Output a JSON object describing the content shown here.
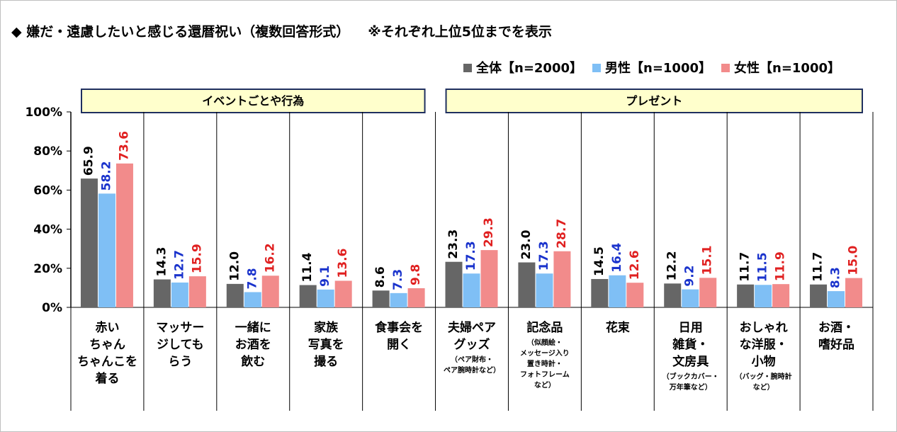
{
  "title": "◆ 嫌だ・遠慮したいと感じる還暦祝い（複数回答形式）",
  "note": "※それぞれ上位5位までを表示",
  "groups": [
    {
      "label": "イベントごとや行為"
    },
    {
      "label": "プレゼント"
    }
  ],
  "chart_data": {
    "type": "bar",
    "ylim": [
      0,
      100
    ],
    "yticks": [
      "0%",
      "20%",
      "40%",
      "60%",
      "80%",
      "100%"
    ],
    "grid": false,
    "legend_position": "top-right",
    "series": [
      {
        "name": "全体【n=2000】",
        "color": "#666666",
        "label_color": "#000000",
        "values": [
          65.9,
          14.3,
          12.0,
          11.4,
          8.6,
          23.3,
          23.0,
          14.5,
          12.2,
          11.7,
          11.7
        ],
        "labels": [
          "65.9",
          "14.3",
          "12.0",
          "11.4",
          "8.6",
          "23.3",
          "23.0",
          "14.5",
          "12.2",
          "11.7",
          "11.7"
        ]
      },
      {
        "name": "男性【n=1000】",
        "color": "#7fbff5",
        "label_color": "#1a33cc",
        "values": [
          58.2,
          12.7,
          7.8,
          9.1,
          7.3,
          17.3,
          17.3,
          16.4,
          9.2,
          11.5,
          8.3
        ],
        "labels": [
          "58.2",
          "12.7",
          "7.8",
          "9.1",
          "7.3",
          "17.3",
          "17.3",
          "16.4",
          "9.2",
          "11.5",
          "8.3"
        ]
      },
      {
        "name": "女性【n=1000】",
        "color": "#f28b8b",
        "label_color": "#e02020",
        "values": [
          73.6,
          15.9,
          16.2,
          13.6,
          9.8,
          29.3,
          28.7,
          12.6,
          15.1,
          11.9,
          15.0
        ],
        "labels": [
          "73.6",
          "15.9",
          "16.2",
          "13.6",
          "9.8",
          "29.3",
          "28.7",
          "12.6",
          "15.1",
          "11.9",
          "15.0"
        ]
      }
    ],
    "categories": [
      {
        "lines": [
          "赤い",
          "ちゃん",
          "ちゃんこを",
          "着る"
        ],
        "sub": []
      },
      {
        "lines": [
          "マッサー",
          "ジしても",
          "らう"
        ],
        "sub": []
      },
      {
        "lines": [
          "一緒に",
          "お酒を",
          "飲む"
        ],
        "sub": []
      },
      {
        "lines": [
          "家族",
          "写真を",
          "撮る"
        ],
        "sub": []
      },
      {
        "lines": [
          "食事会を",
          "開く"
        ],
        "sub": []
      },
      {
        "lines": [
          "夫婦ペア",
          "グッズ"
        ],
        "sub": [
          "（ペア財布・",
          "ペア腕時計など）"
        ]
      },
      {
        "lines": [
          "記念品"
        ],
        "sub": [
          "（似顔絵・",
          "メッセージ入り",
          "置き時計・",
          "フォトフレーム",
          "など）"
        ]
      },
      {
        "lines": [
          "花束"
        ],
        "sub": []
      },
      {
        "lines": [
          "日用",
          "雑貨・",
          "文房具"
        ],
        "sub": [
          "（ブックカバー・",
          "万年筆など）"
        ]
      },
      {
        "lines": [
          "おしゃれ",
          "な洋服・",
          "小物"
        ],
        "sub": [
          "（バッグ・腕時計",
          "など）"
        ]
      },
      {
        "lines": [
          "お酒・",
          "嗜好品"
        ],
        "sub": []
      }
    ]
  }
}
